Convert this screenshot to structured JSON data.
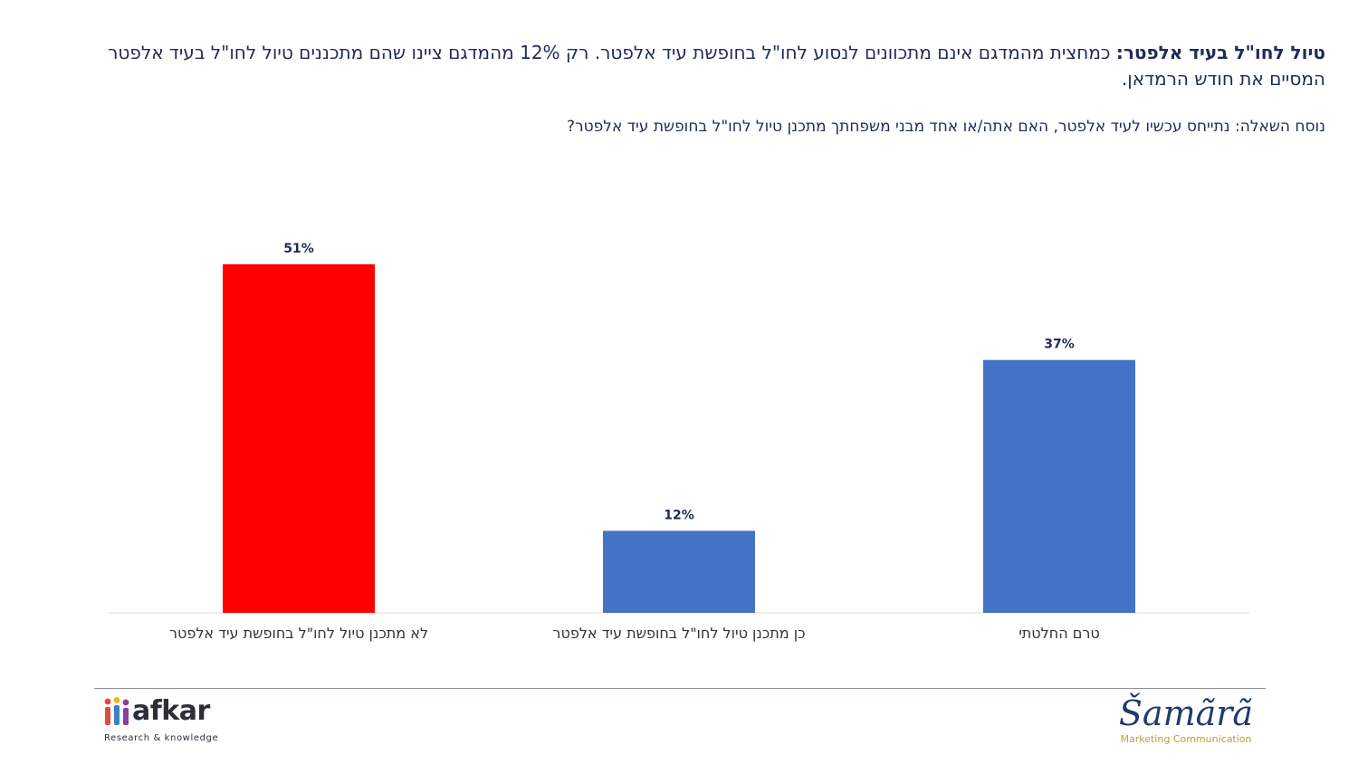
{
  "header": {
    "title_bold": "טיול לחו\"ל בעיד אלפטר:",
    "title_rest": " כמחצית מהמדגם אינם מתכוונים לנסוע לחו\"ל בחופשת עיד אלפטר. רק 12% מהמדגם ציינו שהם מתכננים טיול לחו\"ל בעיד אלפטר המסיים את חודש הרמדאן.",
    "question": "נוסח השאלה: נתייחס עכשיו לעיד אלפטר, האם אתה/או אחד מבני משפחתך מתכנן טיול לחו\"ל בחופשת עיד אלפטר?"
  },
  "chart_data": {
    "type": "bar",
    "categories": [
      "לא מתכנן טיול לחו\"ל בחופשת עיד אלפטר",
      "כן מתכנן טיול לחו\"ל בחופשת עיד אלפטר",
      "טרם החלטתי"
    ],
    "values": [
      51,
      12,
      37
    ],
    "value_labels": [
      "51%",
      "12%",
      "37%"
    ],
    "colors": [
      "#ff0000",
      "#4472c4",
      "#4472c4"
    ],
    "ylim": [
      0,
      55
    ],
    "grid": false,
    "legend": "none"
  },
  "footer": {
    "logo_left_word": "afkar",
    "logo_left_tagline": "Research & knowledge",
    "logo_right_word": "Šamãrã",
    "logo_right_tagline": "Marketing Communication"
  }
}
